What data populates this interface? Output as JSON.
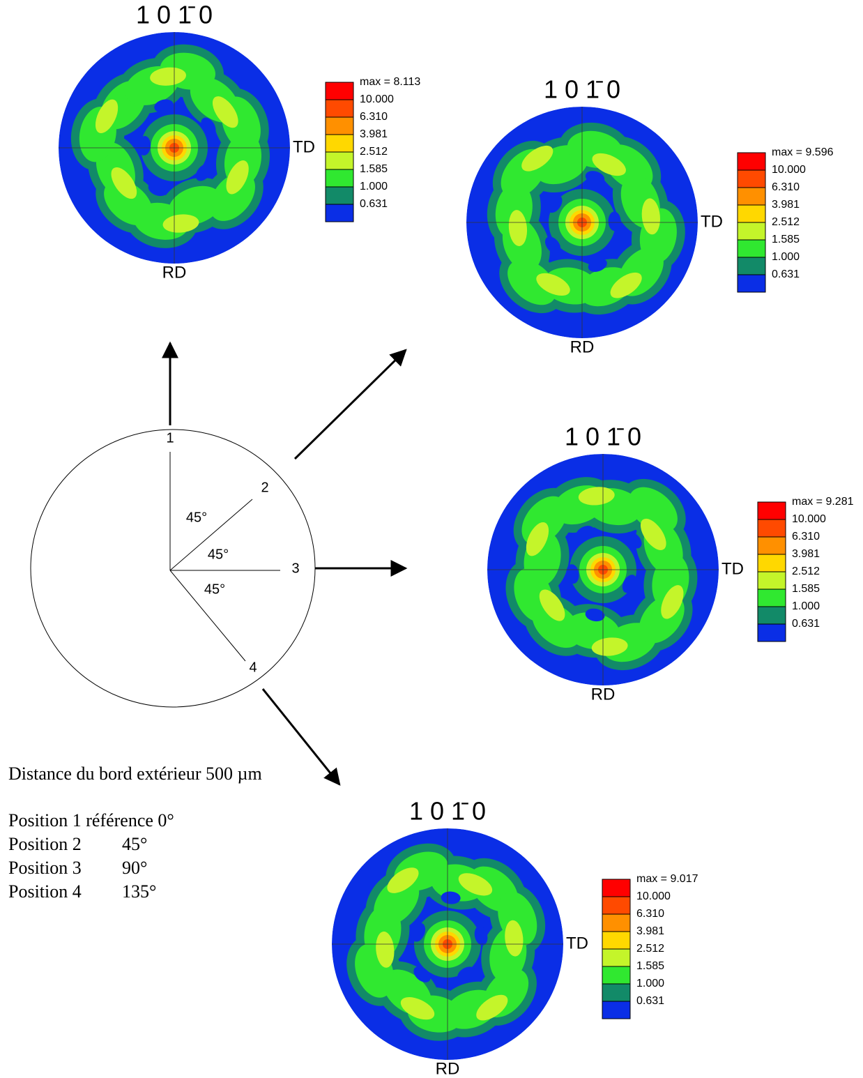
{
  "figures": [
    {
      "title": "1 0 1̄ 0",
      "td": "TD",
      "rd": "RD",
      "legend": {
        "max": "max = 8.113",
        "levels": [
          "10.000",
          "6.310",
          "3.981",
          "2.512",
          "1.585",
          "1.000",
          "0.631"
        ]
      }
    },
    {
      "title": "1 0 1̄ 0",
      "td": "TD",
      "rd": "RD",
      "legend": {
        "max": "max = 9.596",
        "levels": [
          "10.000",
          "6.310",
          "3.981",
          "2.512",
          "1.585",
          "1.000",
          "0.631"
        ]
      }
    },
    {
      "title": "1 0 1̄ 0",
      "td": "TD",
      "rd": "RD",
      "legend": {
        "max": "max = 9.281",
        "levels": [
          "10.000",
          "6.310",
          "3.981",
          "2.512",
          "1.585",
          "1.000",
          "0.631"
        ]
      }
    },
    {
      "title": "1 0 1̄ 0",
      "td": "TD",
      "rd": "RD",
      "legend": {
        "max": "max = 9.017",
        "levels": [
          "10.000",
          "6.310",
          "3.981",
          "2.512",
          "1.585",
          "1.000",
          "0.631"
        ]
      }
    }
  ],
  "diagram": {
    "positions": [
      "1",
      "2",
      "3",
      "4"
    ],
    "angles": [
      "45°",
      "45°",
      "45°"
    ]
  },
  "caption": {
    "distance": "Distance du bord extérieur 500 µm",
    "rows": [
      [
        "Position 1 référence 0°"
      ],
      [
        "Position 2",
        "45°"
      ],
      [
        "Position 3",
        "90°"
      ],
      [
        "Position 4",
        "135°"
      ]
    ]
  }
}
